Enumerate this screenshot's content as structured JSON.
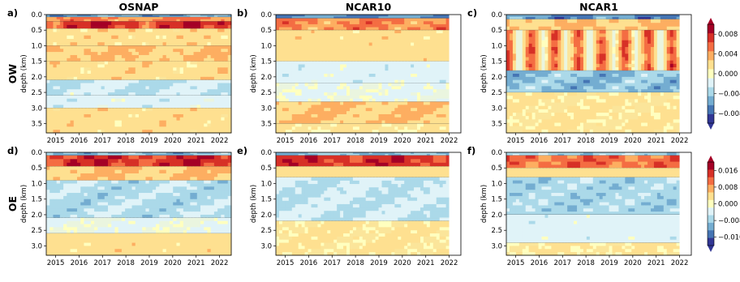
{
  "figure": {
    "column_titles": [
      "OSNAP",
      "NCAR10",
      "NCAR1"
    ],
    "row_labels": [
      "OW",
      "OE"
    ],
    "panel_labels": [
      "a)",
      "b)",
      "c)",
      "d)",
      "e)",
      "f)"
    ],
    "y_axis_label": "depth (km)"
  },
  "colors": {
    "scale": [
      "#313695",
      "#4575b4",
      "#74add1",
      "#abd9e9",
      "#e0f3f8",
      "#ffffbf",
      "#fee090",
      "#fdae61",
      "#f46d43",
      "#d73027",
      "#a50026"
    ],
    "positive_base": "#fbe59a",
    "negative_base": "#eaf5df"
  },
  "chart_data": [
    {
      "panel": "a)",
      "type": "heatmap",
      "title": "OSNAP",
      "row": "OW",
      "ylabel": "depth (km)",
      "ylim": [
        3.8,
        0.0
      ],
      "yticks": [
        "0.0",
        "0.5",
        "1.0",
        "1.5",
        "2.0",
        "2.5",
        "3.0",
        "3.5"
      ],
      "xlim": [
        2014.6,
        2022.5
      ],
      "xticks": [
        "2015",
        "2016",
        "2017",
        "2018",
        "2019",
        "2020",
        "2021",
        "2022"
      ],
      "data_end": 2022.5,
      "features": [
        {
          "d": [
            0.0,
            0.08
          ],
          "value": -0.006,
          "var": 0.5
        },
        {
          "d": [
            0.08,
            0.22
          ],
          "value": 0.005,
          "var": 0.5
        },
        {
          "d": [
            0.22,
            0.45
          ],
          "value": 0.008,
          "var": 0.5
        },
        {
          "d": [
            0.45,
            1.0
          ],
          "value": 0.002,
          "var": 0.8
        },
        {
          "d": [
            1.0,
            1.5
          ],
          "value": 0.003,
          "var": 0.7
        },
        {
          "d": [
            1.5,
            2.1
          ],
          "value": 0.002,
          "var": 0.8
        },
        {
          "d": [
            2.1,
            2.6
          ],
          "value": -0.003,
          "var": 0.8
        },
        {
          "d": [
            2.6,
            3.0
          ],
          "value": -0.002,
          "var": 0.8
        },
        {
          "d": [
            3.0,
            3.8
          ],
          "value": 0.002,
          "var": 0.7
        }
      ]
    },
    {
      "panel": "b)",
      "type": "heatmap",
      "title": "NCAR10",
      "row": "OW",
      "ylabel": "depth (km)",
      "ylim": [
        3.8,
        0.0
      ],
      "yticks": [
        "0.0",
        "0.5",
        "1.0",
        "1.5",
        "2.0",
        "2.5",
        "3.0",
        "3.5"
      ],
      "xlim": [
        2014.6,
        2022.5
      ],
      "xticks": [
        "2015",
        "2016",
        "2017",
        "2018",
        "2019",
        "2020",
        "2021",
        "2022"
      ],
      "data_end": 2022.0,
      "features": [
        {
          "d": [
            0.0,
            0.12
          ],
          "value": -0.007,
          "var": 0.4
        },
        {
          "d": [
            0.12,
            0.5
          ],
          "value": 0.005,
          "var": 0.5
        },
        {
          "d": [
            0.5,
            1.5
          ],
          "value": 0.002,
          "var": 0.6
        },
        {
          "d": [
            1.5,
            2.2
          ],
          "value": -0.002,
          "var": 0.7
        },
        {
          "d": [
            2.2,
            2.8
          ],
          "value": -0.001,
          "var": 0.8
        },
        {
          "d": [
            2.8,
            3.5
          ],
          "value": 0.003,
          "var": 0.7
        },
        {
          "d": [
            3.5,
            3.8
          ],
          "value": 0.001,
          "var": 0.7
        }
      ]
    },
    {
      "panel": "c)",
      "type": "heatmap",
      "title": "NCAR1",
      "row": "OW",
      "ylabel": "depth (km)",
      "ylim": [
        3.8,
        0.0
      ],
      "yticks": [
        "0.0",
        "0.5",
        "1.0",
        "1.5",
        "2.0",
        "2.5",
        "3.0",
        "3.5"
      ],
      "xlim": [
        2014.6,
        2022.5
      ],
      "xticks": [
        "2015",
        "2016",
        "2017",
        "2018",
        "2019",
        "2020",
        "2021",
        "2022"
      ],
      "data_end": 2022.0,
      "features": [
        {
          "d": [
            0.0,
            0.15
          ],
          "value": -0.007,
          "var": 0.5
        },
        {
          "d": [
            0.15,
            0.5
          ],
          "value": 0.003,
          "var": 0.6
        },
        {
          "d": [
            0.5,
            1.8
          ],
          "value": 0.007,
          "var": 0.6,
          "stripes": true
        },
        {
          "d": [
            1.8,
            2.5
          ],
          "value": -0.005,
          "var": 0.5
        },
        {
          "d": [
            2.5,
            3.8
          ],
          "value": 0.001,
          "var": 0.8
        }
      ]
    },
    {
      "panel": "d)",
      "type": "heatmap",
      "title": "",
      "row": "OE",
      "ylabel": "depth (km)",
      "ylim": [
        3.3,
        0.0
      ],
      "yticks": [
        "0.0",
        "0.5",
        "1.0",
        "1.5",
        "2.0",
        "2.5",
        "3.0"
      ],
      "xlim": [
        2014.6,
        2022.5
      ],
      "xticks": [
        "2015",
        "2016",
        "2017",
        "2018",
        "2019",
        "2020",
        "2021",
        "2022"
      ],
      "data_end": 2022.5,
      "features": [
        {
          "d": [
            0.0,
            0.1
          ],
          "value": -0.01,
          "var": 0.5
        },
        {
          "d": [
            0.1,
            0.45
          ],
          "value": 0.016,
          "var": 0.4
        },
        {
          "d": [
            0.45,
            0.9
          ],
          "value": 0.006,
          "var": 0.5
        },
        {
          "d": [
            0.9,
            2.1
          ],
          "value": -0.007,
          "var": 0.6
        },
        {
          "d": [
            2.1,
            2.6
          ],
          "value": -0.002,
          "var": 0.8
        },
        {
          "d": [
            2.6,
            3.3
          ],
          "value": 0.004,
          "var": 0.6
        }
      ]
    },
    {
      "panel": "e)",
      "type": "heatmap",
      "title": "",
      "row": "OE",
      "ylabel": "depth (km)",
      "ylim": [
        3.3,
        0.0
      ],
      "yticks": [
        "0.0",
        "0.5",
        "1.0",
        "1.5",
        "2.0",
        "2.5",
        "3.0"
      ],
      "xlim": [
        2014.6,
        2022.5
      ],
      "xticks": [
        "2015",
        "2016",
        "2017",
        "2018",
        "2019",
        "2020",
        "2021",
        "2022"
      ],
      "data_end": 2022.0,
      "features": [
        {
          "d": [
            0.0,
            0.1
          ],
          "value": -0.01,
          "var": 0.4
        },
        {
          "d": [
            0.1,
            0.45
          ],
          "value": 0.016,
          "var": 0.3
        },
        {
          "d": [
            0.45,
            0.8
          ],
          "value": 0.004,
          "var": 0.5
        },
        {
          "d": [
            0.8,
            2.2
          ],
          "value": -0.006,
          "var": 0.5
        },
        {
          "d": [
            2.2,
            3.3
          ],
          "value": 0.002,
          "var": 0.8
        }
      ]
    },
    {
      "panel": "f)",
      "type": "heatmap",
      "title": "",
      "row": "OE",
      "ylabel": "depth (km)",
      "ylim": [
        3.3,
        0.0
      ],
      "yticks": [
        "0.0",
        "0.5",
        "1.0",
        "1.5",
        "2.0",
        "2.5",
        "3.0"
      ],
      "xlim": [
        2014.6,
        2022.5
      ],
      "xticks": [
        "2015",
        "2016",
        "2017",
        "2018",
        "2019",
        "2020",
        "2021",
        "2022"
      ],
      "data_end": 2022.0,
      "features": [
        {
          "d": [
            0.0,
            0.1
          ],
          "value": -0.008,
          "var": 0.5
        },
        {
          "d": [
            0.1,
            0.5
          ],
          "value": 0.012,
          "var": 0.4
        },
        {
          "d": [
            0.5,
            0.8
          ],
          "value": 0.004,
          "var": 0.5
        },
        {
          "d": [
            0.8,
            2.0
          ],
          "value": -0.008,
          "var": 0.5
        },
        {
          "d": [
            2.0,
            2.9
          ],
          "value": -0.004,
          "var": 0.6
        },
        {
          "d": [
            2.9,
            3.3
          ],
          "value": 0.002,
          "var": 0.6
        }
      ]
    }
  ],
  "colorbars": [
    {
      "row": "OW",
      "ticks": [
        "0.008",
        "0.004",
        "0.000",
        "−0.004",
        "−0.008"
      ],
      "range": [
        -0.01,
        0.01
      ]
    },
    {
      "row": "OE",
      "ticks": [
        "0.016",
        "0.008",
        "0.000",
        "−0.008",
        "−0.016"
      ],
      "range": [
        -0.02,
        0.02
      ]
    }
  ]
}
